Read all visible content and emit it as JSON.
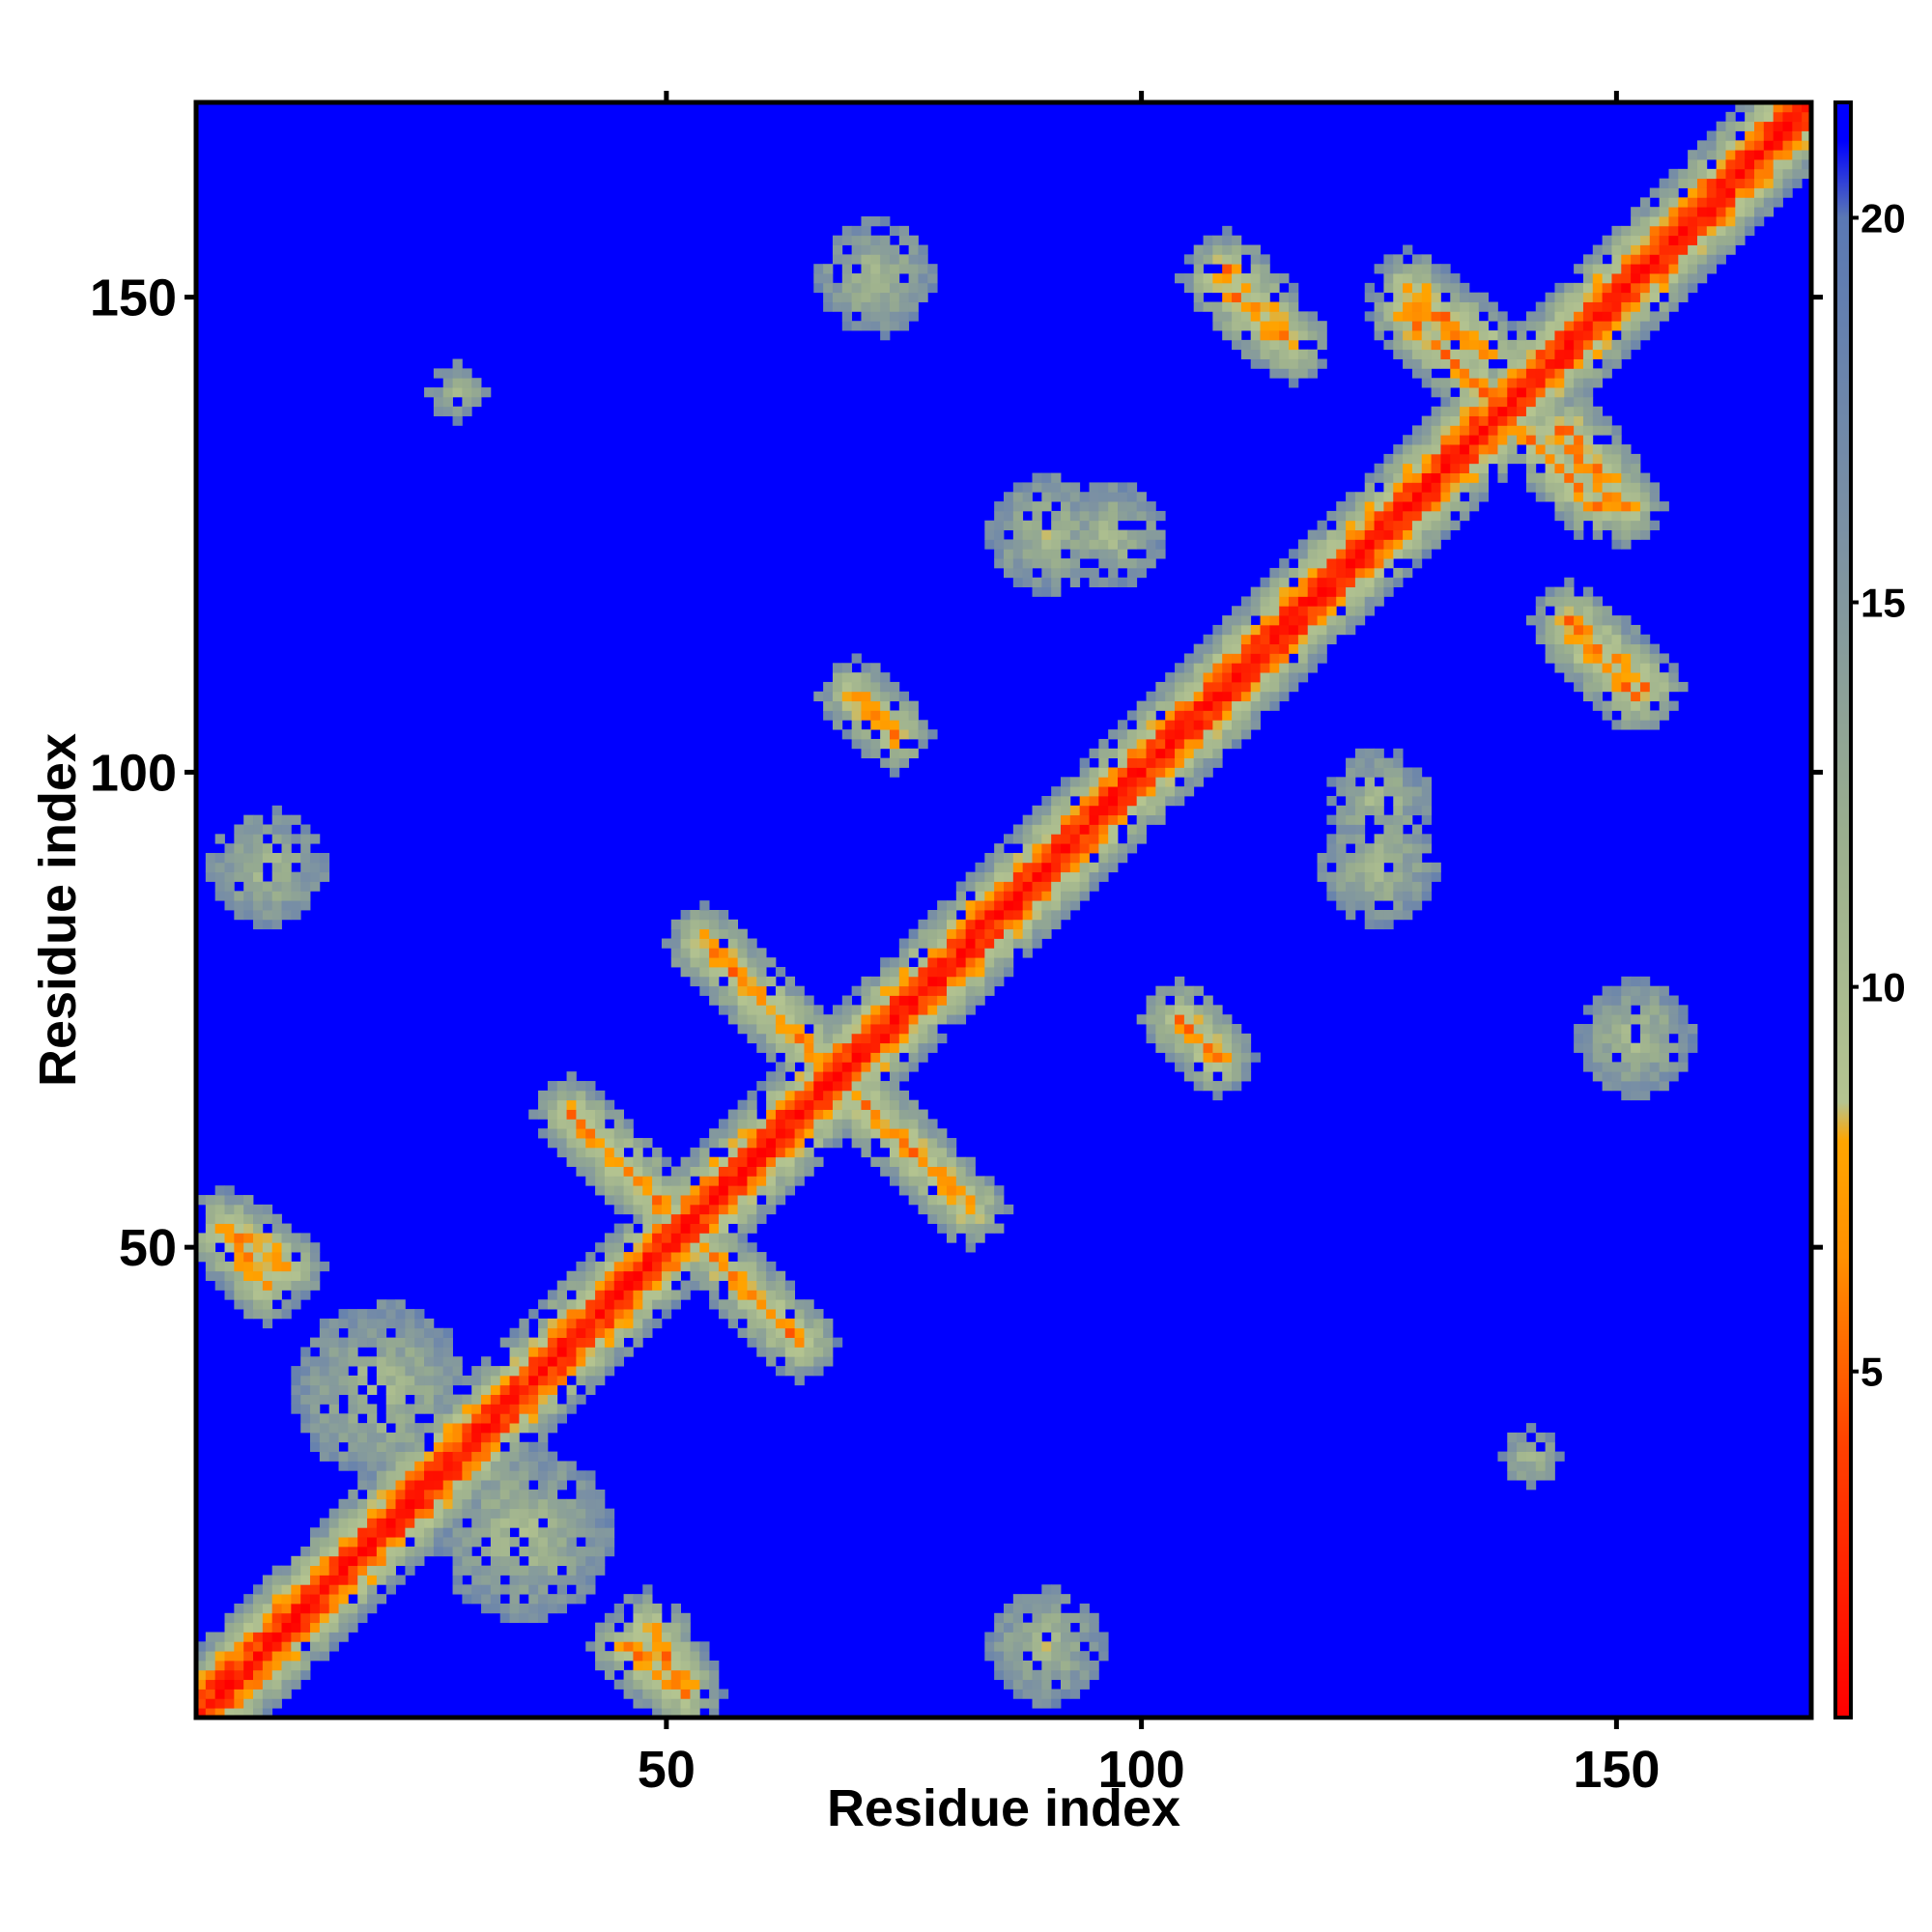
{
  "chart_data": {
    "type": "heatmap",
    "title": "",
    "xlabel": "Residue index",
    "ylabel": "Residue index",
    "x_range": [
      1,
      170
    ],
    "y_range": [
      1,
      170
    ],
    "x_ticks": [
      50,
      100,
      150
    ],
    "y_ticks": [
      50,
      100,
      150
    ],
    "x_tick_labels": [
      "50",
      "100",
      "150"
    ],
    "y_tick_labels": [
      "50",
      "100",
      "150"
    ],
    "colorbar": {
      "range": [
        0.5,
        21.5
      ],
      "ticks": [
        5,
        10,
        15,
        20
      ],
      "tick_labels": [
        "5",
        "10",
        "15",
        "20"
      ],
      "stops": [
        {
          "value": 0.5,
          "color": "#ff0000"
        },
        {
          "value": 4.0,
          "color": "#ff4000"
        },
        {
          "value": 6.5,
          "color": "#ff9000"
        },
        {
          "value": 8.0,
          "color": "#ffa500"
        },
        {
          "value": 8.5,
          "color": "#b4c490"
        },
        {
          "value": 12.0,
          "color": "#9aae8e"
        },
        {
          "value": 16.0,
          "color": "#7a90a4"
        },
        {
          "value": 20.0,
          "color": "#5a78b4"
        },
        {
          "value": 21.0,
          "color": "#0000ff"
        }
      ]
    },
    "background_value": 21,
    "diagonal_band_width": 2.6,
    "contact_features": [
      {
        "type": "anti-parallel",
        "center": [
          52,
          52
        ],
        "span": 12
      },
      {
        "type": "anti-parallel",
        "center": [
          68,
          68
        ],
        "span": 14
      },
      {
        "type": "anti-parallel",
        "center": [
          138,
          138
        ],
        "span": 10
      },
      {
        "type": "parallel",
        "start": [
          108,
          152
        ],
        "end": [
          114,
          146
        ]
      },
      {
        "type": "parallel",
        "start": [
          128,
          150
        ],
        "end": [
          136,
          144
        ]
      },
      {
        "type": "parallel",
        "start": [
          145,
          136
        ],
        "end": [
          151,
          128
        ]
      },
      {
        "type": "parallel",
        "start": [
          145,
          116
        ],
        "end": [
          153,
          109
        ]
      },
      {
        "type": "parallel",
        "start": [
          70,
          108
        ],
        "end": [
          74,
          104
        ]
      },
      {
        "type": "parallel",
        "start": [
          104,
          74
        ],
        "end": [
          108,
          70
        ]
      },
      {
        "type": "parallel",
        "start": [
          46,
          8
        ],
        "end": [
          52,
          3
        ]
      },
      {
        "type": "parallel",
        "start": [
          4,
          52
        ],
        "end": [
          10,
          48
        ]
      },
      {
        "type": "blob",
        "center": [
          28,
          140
        ],
        "radius": 4
      },
      {
        "type": "blob",
        "center": [
          141,
          28
        ],
        "radius": 4
      },
      {
        "type": "blob",
        "center": [
          72,
          152
        ],
        "radius": 8
      },
      {
        "type": "blob",
        "center": [
          152,
          72
        ],
        "radius": 8
      },
      {
        "type": "blob",
        "center": [
          97,
          125
        ],
        "radius": 7
      },
      {
        "type": "blob",
        "center": [
          125,
          97
        ],
        "radius": 7
      },
      {
        "type": "blob",
        "center": [
          8,
          90
        ],
        "radius": 8
      },
      {
        "type": "blob",
        "center": [
          90,
          8
        ],
        "radius": 8
      },
      {
        "type": "blob",
        "center": [
          20,
          35
        ],
        "radius": 12
      },
      {
        "type": "blob",
        "center": [
          35,
          20
        ],
        "radius": 12
      },
      {
        "type": "blob",
        "center": [
          125,
          90
        ],
        "radius": 8
      },
      {
        "type": "blob",
        "center": [
          90,
          125
        ],
        "radius": 8
      }
    ]
  }
}
